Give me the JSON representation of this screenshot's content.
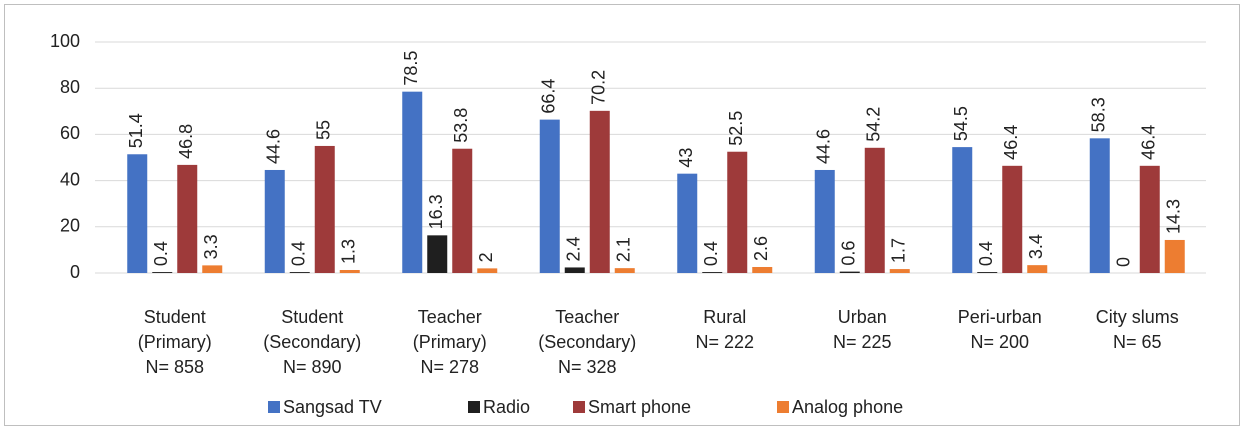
{
  "chart_data": {
    "type": "bar",
    "categories": [
      [
        "Student",
        "(Primary)",
        "N= 858"
      ],
      [
        "Student",
        "(Secondary)",
        "N= 890"
      ],
      [
        "Teacher",
        "(Primary)",
        "N= 278"
      ],
      [
        "Teacher",
        "(Secondary)",
        "N= 328"
      ],
      [
        "Rural",
        "N= 222"
      ],
      [
        "Urban",
        "N= 225"
      ],
      [
        "Peri-urban",
        "N= 200"
      ],
      [
        "City slums",
        "N= 65"
      ]
    ],
    "series": [
      {
        "name": "Sangsad TV",
        "color": "#4472c4",
        "values": [
          51.4,
          44.6,
          78.5,
          66.4,
          43,
          44.6,
          54.5,
          58.3
        ]
      },
      {
        "name": "Radio",
        "color": "#1f1f1f",
        "values": [
          0.4,
          0.4,
          16.3,
          2.4,
          0.4,
          0.6,
          0.4,
          0
        ]
      },
      {
        "name": "Smart phone",
        "color": "#9e3a3a",
        "values": [
          46.8,
          55,
          53.8,
          70.2,
          52.5,
          54.2,
          46.4,
          46.4
        ]
      },
      {
        "name": "Analog  phone",
        "color": "#ed7d31",
        "values": [
          3.3,
          1.3,
          2,
          2.1,
          2.6,
          1.7,
          3.4,
          14.3
        ]
      }
    ],
    "ylim": [
      0,
      100
    ],
    "yticks": [
      0,
      20,
      40,
      60,
      80,
      100
    ],
    "grid": true,
    "legend": "bottom"
  }
}
